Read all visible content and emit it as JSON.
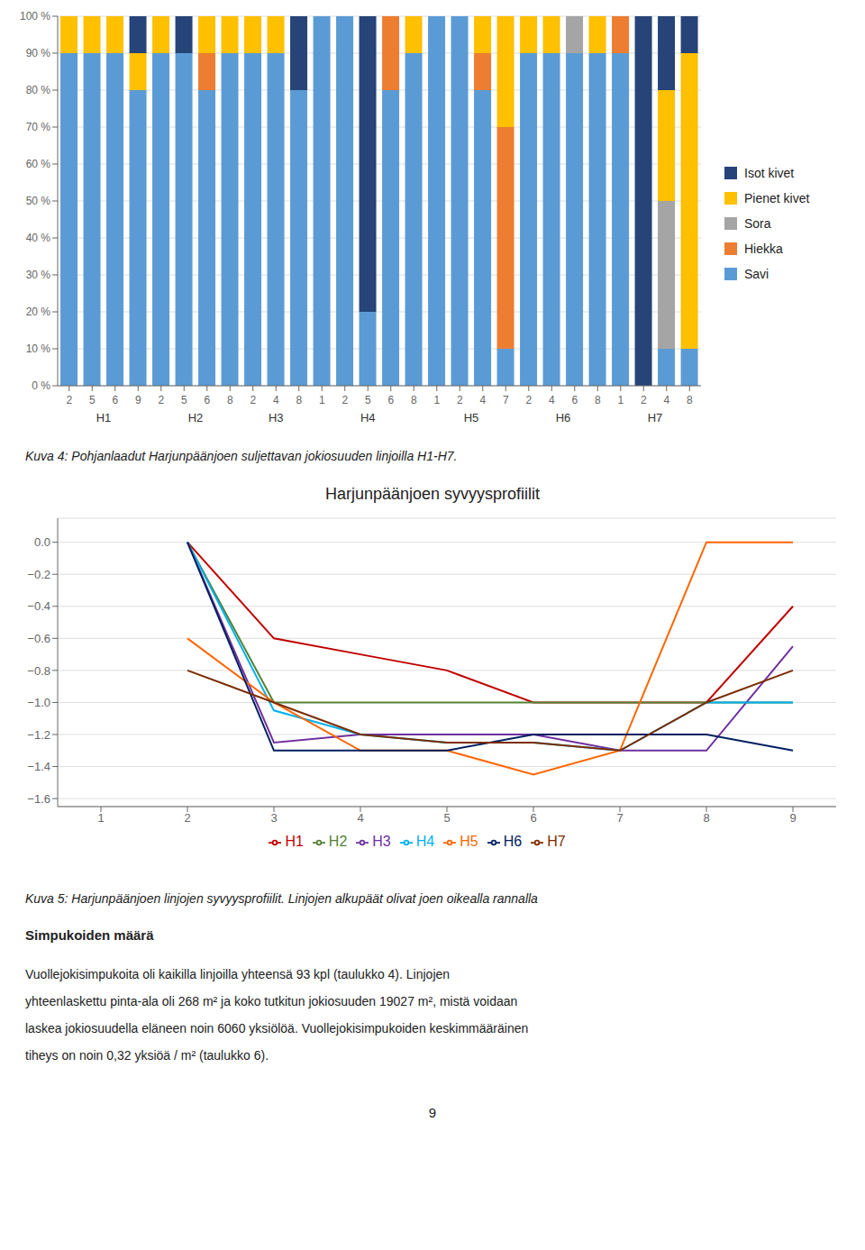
{
  "chart_data": [
    {
      "type": "bar",
      "stacked": true,
      "grid": true,
      "legend": "right",
      "categories": [
        [
          "H1",
          "2"
        ],
        [
          "H1",
          "5"
        ],
        [
          "H1",
          "6"
        ],
        [
          "H1",
          "9"
        ],
        [
          "H2",
          "2"
        ],
        [
          "H2",
          "5"
        ],
        [
          "H2",
          "6"
        ],
        [
          "H2",
          "8"
        ],
        [
          "H3",
          "2"
        ],
        [
          "H3",
          "4"
        ],
        [
          "H3",
          "8"
        ],
        [
          "H4",
          "1"
        ],
        [
          "H4",
          "2"
        ],
        [
          "H4",
          "5"
        ],
        [
          "H4",
          "6"
        ],
        [
          "H4",
          "8"
        ],
        [
          "H5",
          "1"
        ],
        [
          "H5",
          "2"
        ],
        [
          "H5",
          "4"
        ],
        [
          "H5",
          "7"
        ],
        [
          "H6",
          "2"
        ],
        [
          "H6",
          "4"
        ],
        [
          "H6",
          "6"
        ],
        [
          "H6",
          "8"
        ],
        [
          "H7",
          "1"
        ],
        [
          "H7",
          "2"
        ],
        [
          "H7",
          "4"
        ],
        [
          "H7",
          "8"
        ]
      ],
      "series": [
        {
          "name": "Savi",
          "color": "#5B9BD5",
          "values": [
            90,
            90,
            90,
            80,
            90,
            90,
            80,
            90,
            90,
            90,
            80,
            100,
            100,
            20,
            80,
            90,
            100,
            100,
            80,
            10,
            90,
            90,
            90,
            90,
            90,
            0,
            10,
            10
          ]
        },
        {
          "name": "Hiekka",
          "color": "#ED7D31",
          "values": [
            0,
            0,
            0,
            0,
            0,
            0,
            10,
            0,
            0,
            0,
            0,
            0,
            0,
            0,
            20,
            0,
            0,
            0,
            10,
            60,
            0,
            0,
            0,
            0,
            10,
            0,
            0,
            0
          ]
        },
        {
          "name": "Sora",
          "color": "#A5A5A5",
          "values": [
            0,
            0,
            0,
            0,
            0,
            0,
            0,
            0,
            0,
            0,
            0,
            0,
            0,
            0,
            0,
            0,
            0,
            0,
            0,
            0,
            0,
            0,
            10,
            0,
            0,
            0,
            40,
            0
          ]
        },
        {
          "name": "Pienet kivet",
          "color": "#FFC000",
          "values": [
            10,
            10,
            10,
            10,
            10,
            0,
            10,
            10,
            10,
            10,
            0,
            0,
            0,
            0,
            0,
            10,
            0,
            0,
            10,
            30,
            10,
            10,
            0,
            10,
            0,
            0,
            30,
            80
          ]
        },
        {
          "name": "Isot kivet",
          "color": "#264478",
          "values": [
            0,
            0,
            0,
            10,
            0,
            10,
            0,
            0,
            0,
            0,
            20,
            0,
            0,
            80,
            0,
            0,
            0,
            0,
            0,
            0,
            0,
            0,
            0,
            0,
            0,
            100,
            20,
            10
          ]
        }
      ],
      "ylim": [
        0,
        100
      ],
      "yticks": [
        {
          "value": 0,
          "label": "0 %"
        },
        {
          "value": 10,
          "label": "10 %"
        },
        {
          "value": 20,
          "label": "20 %"
        },
        {
          "value": 30,
          "label": "30 %"
        },
        {
          "value": 40,
          "label": "40 %"
        },
        {
          "value": 50,
          "label": "50 %"
        },
        {
          "value": 60,
          "label": "60 %"
        },
        {
          "value": 70,
          "label": "70 %"
        },
        {
          "value": 80,
          "label": "80 %"
        },
        {
          "value": 90,
          "label": "90 %"
        },
        {
          "value": 100,
          "label": "100 %"
        }
      ],
      "annotations": [
        "Kuva 4: Pohjanlaadut Harjunpäänjoen suljettavan jokiosuuden linjoilla H1-H7."
      ]
    },
    {
      "type": "line",
      "title": "Harjunpäänjoen syvyysprofiilit",
      "grid": true,
      "legend": "bottom",
      "x": [
        2,
        3,
        4,
        5,
        6,
        7,
        8,
        9
      ],
      "series": [
        {
          "name": "H1",
          "color": "#C00000",
          "values": [
            0,
            -0.6,
            -0.7,
            -0.8,
            -1.0,
            -1.0,
            -1.0,
            -0.4
          ]
        },
        {
          "name": "H2",
          "color": "#548235",
          "values": [
            0,
            -1.0,
            -1.0,
            -1.0,
            -1.0,
            -1.0,
            -1.0,
            -1.0
          ]
        },
        {
          "name": "H3",
          "color": "#7030A0",
          "values": [
            0,
            -1.25,
            -1.2,
            -1.2,
            -1.2,
            -1.3,
            -1.3,
            -0.65
          ]
        },
        {
          "name": "H4",
          "color": "#00B0F0",
          "values": [
            0,
            -1.05,
            -1.2,
            -1.25,
            -1.25,
            -1.3,
            -1.0,
            -1.0
          ]
        },
        {
          "name": "H5",
          "color": "#FF6600",
          "values": [
            -0.6,
            -1.0,
            -1.3,
            -1.3,
            -1.45,
            -1.3,
            0.0,
            0.0
          ]
        },
        {
          "name": "H6",
          "color": "#002060",
          "values": [
            0,
            -1.3,
            -1.3,
            -1.3,
            -1.2,
            -1.2,
            -1.2,
            -1.3
          ]
        },
        {
          "name": "H7",
          "color": "#7B2C00",
          "values": [
            -0.8,
            -1.0,
            -1.2,
            -1.25,
            -1.25,
            -1.3,
            -1.0,
            -0.8
          ]
        }
      ],
      "xlim": [
        0.5,
        9.5
      ],
      "xticks": [
        1,
        2,
        3,
        4,
        5,
        6,
        7,
        8,
        9
      ],
      "ylim": [
        -1.65,
        0.15
      ],
      "yticks": [
        {
          "value": 0,
          "label": "0.0"
        },
        {
          "value": -0.2,
          "label": "−0.2"
        },
        {
          "value": -0.4,
          "label": "−0.4"
        },
        {
          "value": -0.6,
          "label": "−0.6"
        },
        {
          "value": -0.8,
          "label": "−0.8"
        },
        {
          "value": -1.0,
          "label": "−1.0"
        },
        {
          "value": -1.2,
          "label": "−1.2"
        },
        {
          "value": -1.4,
          "label": "−1.4"
        },
        {
          "value": -1.6,
          "label": "−1.6"
        }
      ],
      "annotations": [
        "Kuva 5: Harjunpäänjoen linjojen syvyysprofiilit. Linjojen alkupäät olivat joen oikealla rannalla",
        "Simpukoiden määrä",
        "Vuollejokisimpukoita oli kaikilla linjoilla yhteensä 93 kpl (taulukko 4). Linjojen",
        "yhteenlaskettu pinta-ala oli 268 m² ja koko tutkitun jokiosuuden 19027 m², mistä voidaan",
        "laskea jokiosuudella eläneen noin 6060 yksiölöä. Vuollejokisimpukoiden keskimmääräinen",
        "tiheys on noin 0,32 yksiöä / m² (taulukko 6).",
        "9"
      ]
    }
  ]
}
